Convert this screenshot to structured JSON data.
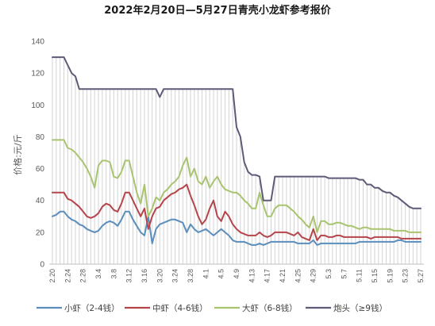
{
  "chart_data": {
    "type": "line",
    "title": "2022年2月20日—5月27日青壳小龙虾参考报价",
    "ylabel": "价格:元/斤",
    "ylim": [
      0,
      140
    ],
    "yticks": [
      0,
      20,
      40,
      60,
      80,
      100,
      120,
      140
    ],
    "grid": false,
    "drop_lines": true,
    "legend": "bottom",
    "x": [
      "2.20",
      "2.21",
      "2.22",
      "2.23",
      "2.24",
      "2.25",
      "2.26",
      "2.27",
      "2.28",
      "3.1",
      "3.2",
      "3.3",
      "3.4",
      "3.5",
      "3.6",
      "3.7",
      "3.8",
      "3.9",
      "3.10",
      "3.11",
      "3.12",
      "3.13",
      "3.14",
      "3.15",
      "3.16",
      "3.17",
      "3.18",
      "3.19",
      "3.20",
      "3.21",
      "3.22",
      "3.23",
      "3.24",
      "3.25",
      "3.26",
      "3.27",
      "3.28",
      "3.29",
      "3.30",
      "3.31",
      "4.1",
      "4.2",
      "4.3",
      "4.4",
      "4.5",
      "4.6",
      "4.7",
      "4.8",
      "4.9",
      "4.10",
      "4.11",
      "4.12",
      "4.13",
      "4.14",
      "4.15",
      "4.16",
      "4.17",
      "4.18",
      "4.19",
      "4.20",
      "4.21",
      "4.22",
      "4.23",
      "4.24",
      "4.25",
      "4.26",
      "4.27",
      "4.28",
      "4.29",
      "4.30",
      "5.1",
      "5.2",
      "5.3",
      "5.4",
      "5.5",
      "5.6",
      "5.7",
      "5.8",
      "5.9",
      "5.10",
      "5.11",
      "5.12",
      "5.13",
      "5.14",
      "5.15",
      "5.16",
      "5.17",
      "5.18",
      "5.19",
      "5.20",
      "5.21",
      "5.22",
      "5.23",
      "5.24",
      "5.25",
      "5.26",
      "5.27"
    ],
    "x_tick_labels": [
      "2.20",
      "2.24",
      "2.28",
      "3.4",
      "3.8",
      "3.12",
      "3.16",
      "3.20",
      "3.24",
      "3.28",
      "4.1",
      "4.5",
      "4.9",
      "4.13",
      "4.17",
      "4.21",
      "4.25",
      "4.29",
      "5.3",
      "5.7",
      "5.11",
      "5.15",
      "5.19",
      "5.23",
      "5.27"
    ],
    "series": [
      {
        "name": "小虾（2-4钱）",
        "color": "#5b8ebc",
        "values": [
          30,
          31,
          33,
          33,
          30,
          28,
          27,
          25,
          24,
          22,
          21,
          20,
          21,
          24,
          26,
          27,
          26,
          24,
          28,
          33,
          33,
          28,
          24,
          20,
          18,
          30,
          13,
          22,
          25,
          26,
          27,
          28,
          28,
          27,
          26,
          20,
          25,
          22,
          20,
          21,
          22,
          20,
          18,
          20,
          22,
          20,
          18,
          15,
          14,
          14,
          14,
          13,
          12,
          12,
          13,
          12,
          13,
          14,
          14,
          14,
          14,
          14,
          14,
          14,
          13,
          13,
          13,
          13,
          15,
          12,
          13,
          13,
          13,
          13,
          13,
          13,
          13,
          13,
          13,
          13,
          14,
          14,
          14,
          14,
          14,
          14,
          14,
          14,
          14,
          14,
          15,
          15,
          14,
          14,
          14,
          14,
          14
        ]
      },
      {
        "name": "中虾（4-6钱）",
        "color": "#b5454a",
        "values": [
          45,
          45,
          45,
          45,
          41,
          40,
          38,
          36,
          33,
          30,
          29,
          30,
          32,
          36,
          38,
          37,
          34,
          33,
          38,
          45,
          45,
          40,
          35,
          30,
          35,
          22,
          30,
          35,
          36,
          40,
          42,
          44,
          45,
          47,
          48,
          50,
          43,
          37,
          30,
          25,
          28,
          35,
          40,
          30,
          27,
          33,
          30,
          25,
          22,
          20,
          19,
          18,
          18,
          18,
          20,
          18,
          17,
          18,
          20,
          20,
          20,
          20,
          19,
          18,
          20,
          17,
          16,
          15,
          22,
          15,
          18,
          18,
          17,
          17,
          18,
          18,
          17,
          17,
          17,
          17,
          17,
          17,
          17,
          16,
          17,
          17,
          17,
          17,
          17,
          17,
          17,
          16,
          16,
          16,
          16,
          16,
          16
        ]
      },
      {
        "name": "大虾（6-8钱）",
        "color": "#a9c46e",
        "values": [
          78,
          78,
          78,
          78,
          73,
          72,
          70,
          67,
          64,
          60,
          55,
          48,
          62,
          65,
          65,
          64,
          55,
          54,
          58,
          65,
          65,
          55,
          45,
          38,
          50,
          30,
          35,
          42,
          40,
          45,
          47,
          50,
          52,
          55,
          62,
          67,
          55,
          60,
          52,
          50,
          55,
          48,
          52,
          55,
          50,
          47,
          46,
          45,
          45,
          43,
          40,
          38,
          35,
          35,
          45,
          37,
          30,
          30,
          35,
          37,
          37,
          37,
          35,
          33,
          30,
          28,
          25,
          23,
          30,
          20,
          27,
          27,
          25,
          25,
          26,
          26,
          25,
          24,
          24,
          23,
          22,
          23,
          23,
          22,
          22,
          22,
          22,
          22,
          22,
          21,
          21,
          21,
          21,
          20,
          20,
          20,
          20
        ]
      },
      {
        "name": "炮头（≥9钱）",
        "color": "#5e5a77",
        "values": [
          130,
          130,
          130,
          130,
          125,
          120,
          118,
          110,
          110,
          110,
          110,
          110,
          110,
          110,
          110,
          110,
          110,
          110,
          110,
          110,
          110,
          110,
          110,
          110,
          110,
          110,
          110,
          110,
          105,
          110,
          110,
          110,
          110,
          110,
          110,
          110,
          110,
          110,
          110,
          110,
          110,
          110,
          110,
          110,
          110,
          110,
          110,
          110,
          86,
          80,
          64,
          58,
          56,
          56,
          55,
          40,
          40,
          40,
          55,
          55,
          55,
          55,
          55,
          55,
          55,
          55,
          55,
          55,
          55,
          55,
          55,
          55,
          54,
          54,
          54,
          54,
          54,
          54,
          54,
          54,
          53,
          53,
          50,
          50,
          48,
          48,
          46,
          45,
          45,
          43,
          42,
          40,
          38,
          36,
          35,
          35,
          35
        ]
      }
    ]
  }
}
